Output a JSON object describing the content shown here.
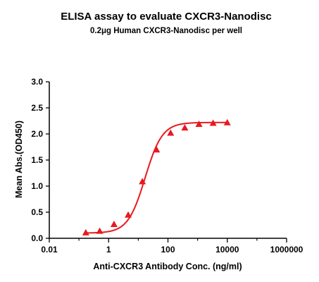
{
  "chart_data": {
    "type": "scatter",
    "title": "ELISA assay to evaluate CXCR3-Nanodisc",
    "subtitle": "0.2μg Human CXCR3-Nanodisc per well",
    "xlabel": "Anti-CXCR3 Antibody Conc. (ng/ml)",
    "ylabel": "Mean Abs.(OD450)",
    "x_scale": "log",
    "xlim": [
      0.01,
      1000000
    ],
    "ylim": [
      0,
      3.0
    ],
    "x_ticks": [
      0.01,
      1,
      100,
      10000,
      1000000
    ],
    "x_tick_labels": [
      "0.01",
      "1",
      "100",
      "10000",
      "1000000"
    ],
    "y_ticks": [
      0,
      0.5,
      1.0,
      1.5,
      2.0,
      2.5,
      3.0
    ],
    "y_tick_labels": [
      "0.0",
      "0.5",
      "1.0",
      "1.5",
      "2.0",
      "2.5",
      "3.0"
    ],
    "grid": false,
    "legend": "none",
    "series": [
      {
        "color": "#e8191f",
        "marker": "triangle",
        "fit": "4PL sigmoid",
        "x": [
          0.17,
          0.5,
          1.52,
          4.57,
          13.7,
          41.2,
          123,
          370,
          1111,
          3333,
          10000
        ],
        "y": [
          0.11,
          0.14,
          0.27,
          0.45,
          1.09,
          1.7,
          2.02,
          2.12,
          2.19,
          2.21,
          2.22
        ]
      }
    ]
  }
}
